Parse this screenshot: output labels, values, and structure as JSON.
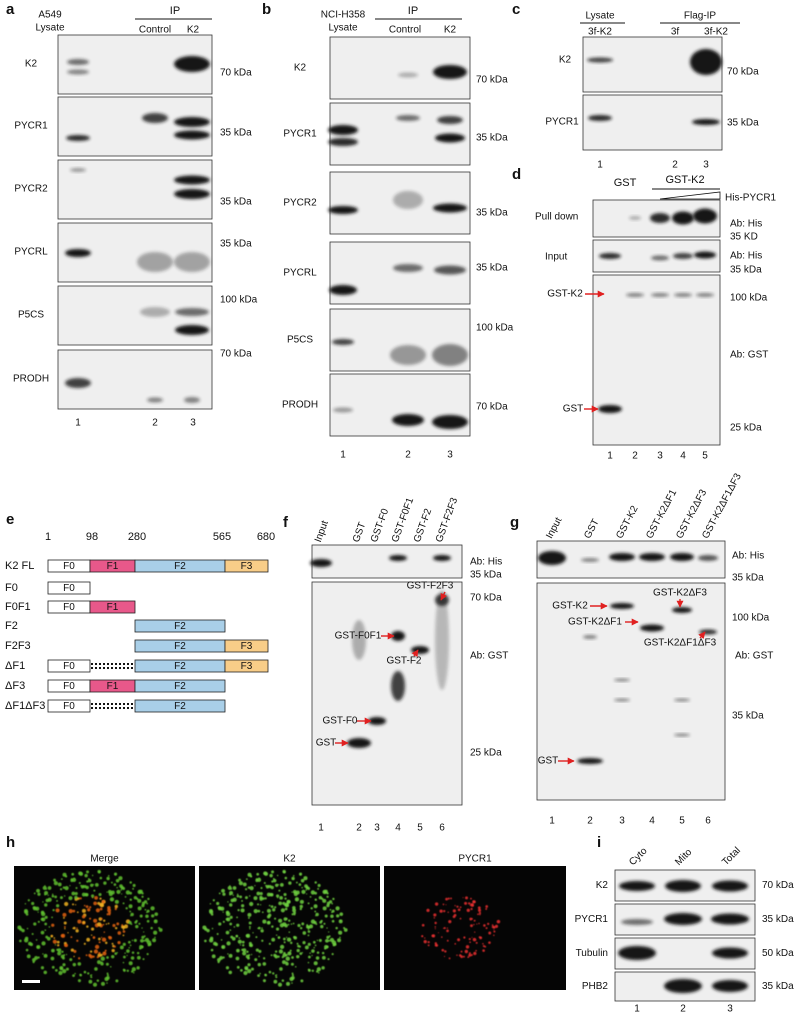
{
  "figure": {
    "a": {
      "label": "a",
      "lysate": [
        "A549",
        "Lysate"
      ],
      "ip": "IP",
      "ip_lanes": [
        "Control",
        "K2"
      ],
      "rows": [
        {
          "name": "K2",
          "marker": "70 kDa"
        },
        {
          "name": "PYCR1",
          "marker": "35 kDa"
        },
        {
          "name": "PYCR2",
          "marker": "35 kDa"
        },
        {
          "name": "PYCRL",
          "marker": "35 kDa"
        },
        {
          "name": "P5CS",
          "marker": "100 kDa"
        },
        {
          "name": "PRODH",
          "marker": "70 kDa"
        }
      ],
      "lane_numbers": [
        "1",
        "2",
        "3"
      ]
    },
    "b": {
      "label": "b",
      "lysate": [
        "NCI-H358",
        "Lysate"
      ],
      "ip": "IP",
      "ip_lanes": [
        "Control",
        "K2"
      ],
      "rows": [
        {
          "name": "K2",
          "marker": "70 kDa"
        },
        {
          "name": "PYCR1",
          "marker": "35 kDa"
        },
        {
          "name": "PYCR2",
          "marker": "35 kDa"
        },
        {
          "name": "PYCRL",
          "marker": "35 kDa"
        },
        {
          "name": "P5CS",
          "marker": "100 kDa"
        },
        {
          "name": "PRODH",
          "marker": "70 kDa"
        }
      ],
      "lane_numbers": [
        "1",
        "2",
        "3"
      ]
    },
    "c": {
      "label": "c",
      "groups": [
        "Lysate",
        "Flag-IP"
      ],
      "lanes": [
        "3f-K2",
        "3f",
        "3f-K2"
      ],
      "rows": [
        {
          "name": "K2",
          "marker": "70 kDa"
        },
        {
          "name": "PYCR1",
          "marker": "35 kDa"
        }
      ],
      "lane_numbers": [
        "1",
        "2",
        "3"
      ]
    },
    "d": {
      "label": "d",
      "lane_headers": [
        "GST",
        "GST-K2"
      ],
      "titration": "His-PYCR1",
      "blots": [
        {
          "label": "Pull down",
          "antibody": "Ab: His",
          "markers": [
            "35 KD"
          ]
        },
        {
          "label": "Input",
          "antibody": "Ab: His",
          "markers": [
            "35 kDa"
          ]
        },
        {
          "antibody": "Ab: GST",
          "markers": [
            "100 kDa",
            "25 kDa"
          ],
          "band_labels": [
            "GST-K2",
            "GST"
          ]
        }
      ],
      "lane_numbers": [
        "1",
        "2",
        "3",
        "4",
        "5"
      ]
    },
    "e": {
      "label": "e",
      "positions": [
        "1",
        "98",
        "280",
        "565",
        "680"
      ],
      "constructs": [
        {
          "name": "K2 FL",
          "domains": [
            "F0",
            "F1",
            "F2",
            "F3"
          ]
        },
        {
          "name": "F0",
          "domains": [
            "F0"
          ]
        },
        {
          "name": "F0F1",
          "domains": [
            "F0",
            "F1"
          ]
        },
        {
          "name": "F2",
          "domains": [
            "F2"
          ]
        },
        {
          "name": "F2F3",
          "domains": [
            "F2",
            "F3"
          ]
        },
        {
          "name": "ΔF1",
          "domains": [
            "F0",
            "F2",
            "F3"
          ]
        },
        {
          "name": "ΔF3",
          "domains": [
            "F0",
            "F1",
            "F2"
          ]
        },
        {
          "name": "ΔF1ΔF3",
          "domains": [
            "F0",
            "F2"
          ]
        }
      ]
    },
    "f": {
      "label": "f",
      "lanes": [
        "Input",
        "GST",
        "GST-F0",
        "GST-F0F1",
        "GST-F2",
        "GST-F2F3"
      ],
      "his": {
        "antibody": "Ab: His",
        "markers": [
          "35 kDa"
        ]
      },
      "gst": {
        "antibody": "Ab: GST",
        "markers": [
          "70 kDa",
          "25 kDa"
        ],
        "band_labels": [
          "GST-F2F3",
          "GST-F0F1",
          "GST-F2",
          "GST-F0",
          "GST"
        ]
      },
      "lane_numbers": [
        "1",
        "2",
        "3",
        "4",
        "5",
        "6"
      ]
    },
    "g": {
      "label": "g",
      "lanes": [
        "Input",
        "GST",
        "GST-K2",
        "GST-K2ΔF1",
        "GST-K2ΔF3",
        "GST-K2ΔF1ΔF3"
      ],
      "his": {
        "antibody": "Ab: His",
        "markers": [
          "35 kDa"
        ]
      },
      "gst": {
        "antibody": "Ab: GST",
        "markers": [
          "100 kDa",
          "35 kDa"
        ],
        "band_labels": [
          "GST-K2",
          "GST-K2ΔF3",
          "GST-K2ΔF1",
          "GST-K2ΔF1ΔF3",
          "GST"
        ]
      },
      "lane_numbers": [
        "1",
        "2",
        "3",
        "4",
        "5",
        "6"
      ]
    },
    "h": {
      "label": "h",
      "channels": [
        "Merge",
        "K2",
        "PYCR1"
      ]
    },
    "i": {
      "label": "i",
      "fractions": [
        "Cyto",
        "Mito",
        "Total"
      ],
      "rows": [
        {
          "name": "K2",
          "marker": "70 kDa"
        },
        {
          "name": "PYCR1",
          "marker": "35 kDa"
        },
        {
          "name": "Tubulin",
          "marker": "50 kDa"
        },
        {
          "name": "PHB2",
          "marker": "35 kDa"
        }
      ],
      "lane_numbers": [
        "1",
        "2",
        "3"
      ]
    }
  }
}
